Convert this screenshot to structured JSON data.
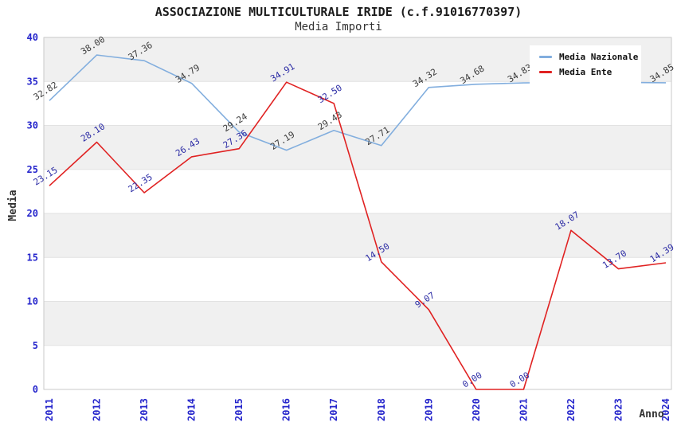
{
  "header": {
    "title": "ASSOCIAZIONE MULTICULTURALE IRIDE (c.f.91016770397)",
    "subtitle": "Media Importi"
  },
  "legend": {
    "position": "top-right",
    "items": [
      {
        "label": "Media Nazionale",
        "color": "#82aede"
      },
      {
        "label": "Media Ente",
        "color": "#e02222"
      }
    ]
  },
  "axes": {
    "y_title": "Media",
    "x_title": "Anno",
    "y_ticks": [
      0,
      5,
      10,
      15,
      20,
      25,
      30,
      35,
      40
    ],
    "x_ticks": [
      "2011",
      "2012",
      "2013",
      "2014",
      "2015",
      "2016",
      "2017",
      "2018",
      "2019",
      "2020",
      "2021",
      "2022",
      "2023",
      "2024"
    ],
    "tick_color": "#2626cc"
  },
  "chart_data": {
    "type": "line",
    "title": "ASSOCIAZIONE MULTICULTURALE IRIDE (c.f.91016770397)",
    "subtitle": "Media Importi",
    "xlabel": "Anno",
    "ylabel": "Media",
    "ylim": [
      0,
      40
    ],
    "grid": true,
    "band_fill": "#f0f0f0",
    "grid_color": "#e2e2e2",
    "border_color": "#c9c9c9",
    "legend_position": "top-right",
    "x": [
      2011,
      2012,
      2013,
      2014,
      2015,
      2016,
      2017,
      2018,
      2019,
      2020,
      2021,
      2022,
      2023,
      2024
    ],
    "series": [
      {
        "name": "Media Nazionale",
        "color": "#82aede",
        "label_color": "#3a3a3a",
        "values": [
          32.82,
          38.0,
          37.36,
          34.79,
          29.24,
          27.19,
          29.43,
          27.71,
          34.32,
          34.68,
          34.83,
          34.9,
          34.9,
          34.85
        ],
        "point_labels": [
          "32.82",
          "38.00",
          "37.36",
          "34.79",
          "29.24",
          "27.19",
          "29.43",
          "27.71",
          "34.32",
          "34.68",
          "34.83",
          null,
          null,
          "34.85"
        ]
      },
      {
        "name": "Media Ente",
        "color": "#e02222",
        "label_color": "#2a2aa4",
        "values": [
          23.15,
          28.1,
          22.35,
          26.43,
          27.36,
          34.91,
          32.5,
          14.5,
          9.07,
          0.0,
          0.0,
          18.07,
          13.7,
          14.39
        ],
        "point_labels": [
          "23.15",
          "28.10",
          "22.35",
          "26.43",
          "27.36",
          "34.91",
          "32.50",
          "14.50",
          "9.07",
          "0.00",
          "0.00",
          "18.07",
          "13.70",
          "14.39"
        ]
      }
    ]
  }
}
